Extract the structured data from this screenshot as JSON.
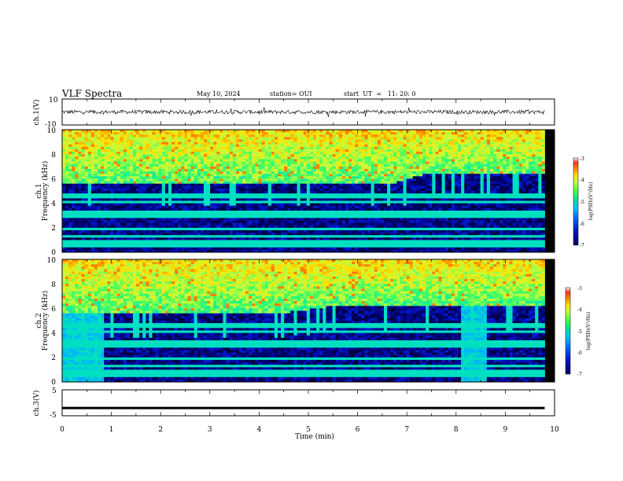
{
  "header": {
    "title": "VLF Spectra",
    "date": "May 10, 2024",
    "station": "station= OUI",
    "start": "start  UT  =   11: 20: 0"
  },
  "colors": {
    "spectrogram_colormap": [
      "#000000",
      "#000060",
      "#0010c0",
      "#0050ff",
      "#00b0ff",
      "#00e0c0",
      "#40ff60",
      "#c0ff40",
      "#ffe000",
      "#ff8000",
      "#e00000"
    ],
    "trace": "#000000"
  },
  "chart_data": [
    {
      "type": "line",
      "panel": "ch1-waveform",
      "ylabel": "ch.1(V)",
      "ylim": [
        -10,
        10
      ],
      "yticks": [
        "10",
        "-10"
      ],
      "xlim": [
        0,
        10
      ],
      "note_values": {
        "typical_range_V": [
          -1.5,
          1.5
        ]
      }
    },
    {
      "type": "heatmap",
      "panel": "ch1-spectrogram",
      "ylabel": "ch.1\nFrequency (kHz)",
      "ylim": [
        0,
        10
      ],
      "yticks": [
        "0",
        "2",
        "4",
        "6",
        "8",
        "10"
      ],
      "xlim": [
        0,
        10
      ],
      "colorbar": {
        "label": "log(PSD)(V²/Hz)",
        "range": [
          -7,
          -3
        ],
        "ticks": [
          "-3",
          "-4",
          "-5",
          "-6",
          "-7"
        ]
      },
      "features": {
        "data_end_min": 9.8,
        "noise_floor_top_kHz": [
          [
            0,
            5.7
          ],
          [
            6.8,
            5.7
          ],
          [
            7.5,
            6.5
          ],
          [
            9.8,
            6.4
          ]
        ]
      }
    },
    {
      "type": "heatmap",
      "panel": "ch2-spectrogram",
      "ylabel": "ch.2\nFrequency (kHz)",
      "ylim": [
        0,
        10
      ],
      "yticks": [
        "0",
        "2",
        "4",
        "6",
        "8",
        "10"
      ],
      "xlim": [
        0,
        10
      ],
      "colorbar": {
        "label": "log(PSD)(V²/Hz)",
        "range": [
          -7,
          -3
        ],
        "ticks": [
          "-3",
          "-4",
          "-5",
          "-6",
          "-7"
        ]
      },
      "features": {
        "data_end_min": 9.8,
        "noise_floor_top_kHz": [
          [
            0,
            5.6
          ],
          [
            4.5,
            5.6
          ],
          [
            5.5,
            6.2
          ],
          [
            9.8,
            6.3
          ]
        ],
        "broadband_noise_intervals_min": [
          [
            0,
            0.85
          ],
          [
            8.1,
            8.6
          ]
        ]
      }
    },
    {
      "type": "line",
      "panel": "ch3-waveform",
      "ylabel": "ch.3(V)",
      "ylim": [
        -5,
        5
      ],
      "yticks": [
        "5",
        "-5"
      ],
      "xlim": [
        0,
        10
      ],
      "xlabel": "Time (min)",
      "xticks": [
        "0",
        "1",
        "2",
        "3",
        "4",
        "5",
        "6",
        "7",
        "8",
        "9",
        "10"
      ],
      "values_constant_V": -2
    }
  ]
}
